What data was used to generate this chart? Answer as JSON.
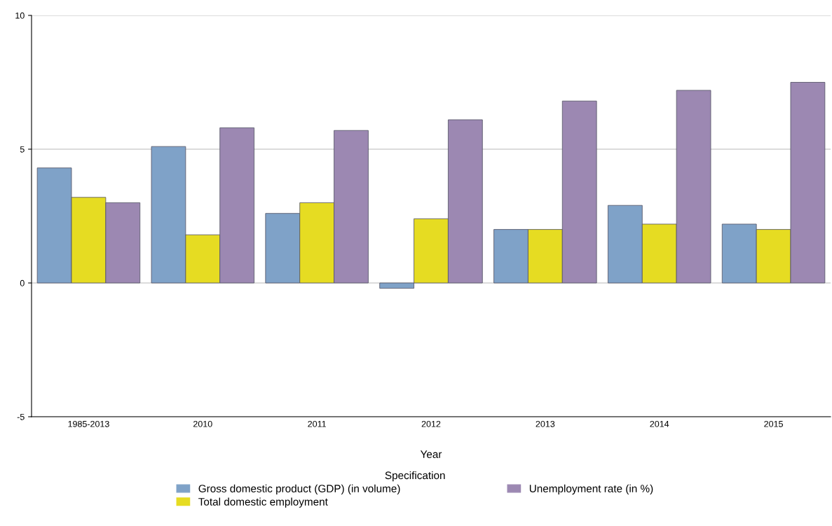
{
  "chart_data": {
    "type": "bar",
    "xlabel": "Year",
    "legend_title": "Specification",
    "categories": [
      "1985-2013",
      "2010",
      "2011",
      "2012",
      "2013",
      "2014",
      "2015"
    ],
    "series": [
      {
        "name": "Gross domestic product (GDP) (in volume)",
        "color": "#7fa2c8",
        "values": [
          4.3,
          5.1,
          2.6,
          -0.2,
          2.0,
          2.9,
          2.2
        ]
      },
      {
        "name": "Total domestic employment",
        "color": "#e6dc22",
        "values": [
          3.2,
          1.8,
          3.0,
          2.4,
          2.0,
          2.2,
          2.0
        ]
      },
      {
        "name": "Unemployment rate (in %)",
        "color": "#9c88b2",
        "values": [
          3.0,
          5.8,
          5.7,
          6.1,
          6.8,
          7.2,
          7.5
        ]
      }
    ],
    "ylim": [
      -5,
      10
    ],
    "yticks": [
      -5,
      0,
      5,
      10
    ],
    "grid": "y",
    "legend": "bottom"
  }
}
